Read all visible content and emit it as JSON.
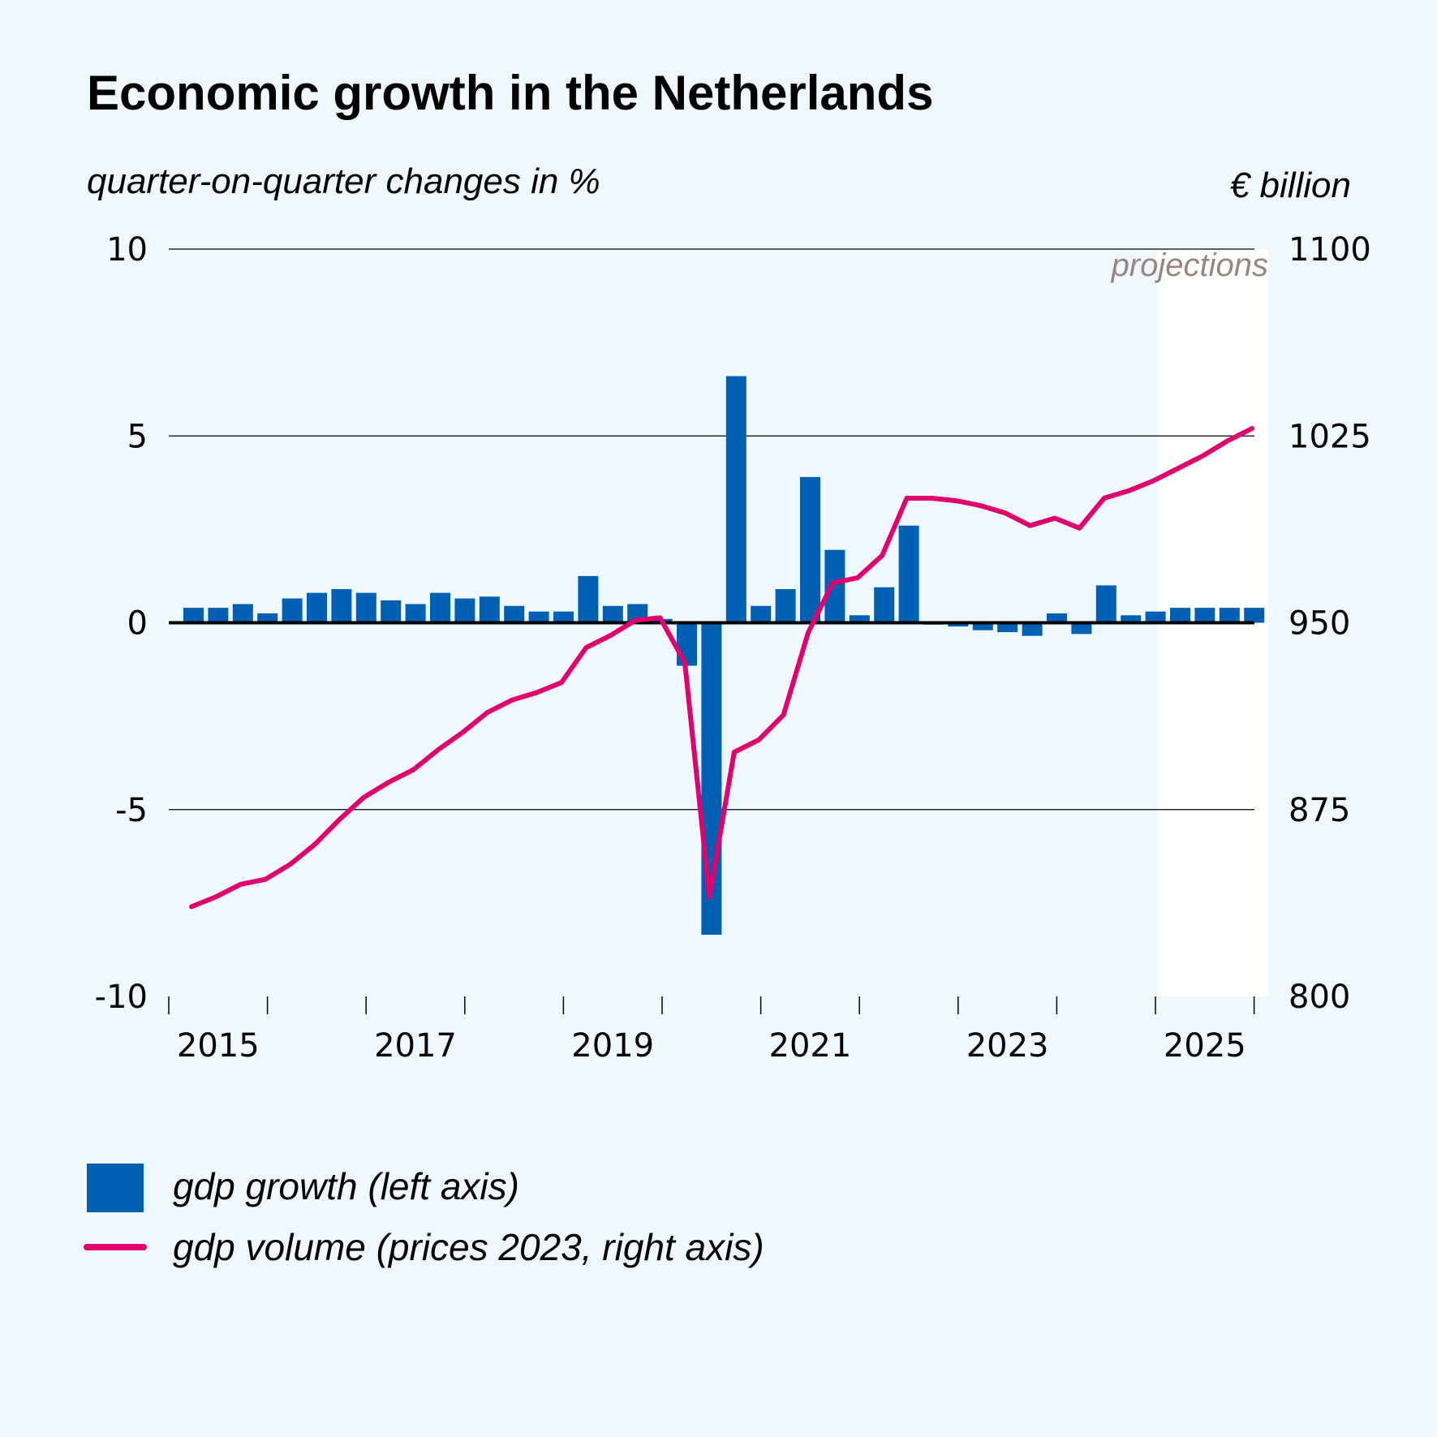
{
  "chart_data": {
    "type": "bar+line",
    "title": "Economic growth in the Netherlands",
    "left_axis_label": "quarter-on-quarter changes in %",
    "right_axis_label": "€ billion",
    "projection_label": "projections",
    "left_ylim": [
      -10,
      10
    ],
    "left_ticks": [
      "10",
      "5",
      "0",
      "-5",
      "-10"
    ],
    "right_ylim": [
      800,
      1100
    ],
    "right_ticks": [
      "1100",
      "1025",
      "950",
      "875",
      "800"
    ],
    "x_tick_labels": [
      "2015",
      "2017",
      "2019",
      "2021",
      "2023",
      "2025"
    ],
    "quarters_start": "2015Q1",
    "projection_start_index": 40,
    "grid": true,
    "legend_position": "bottom-left",
    "colors": {
      "bars": "#0060b4",
      "line": "#e0006e",
      "projection_bg": "#ffffff",
      "background": "#eef8fe"
    },
    "series": [
      {
        "name": "gdp growth (left axis)",
        "kind": "bar",
        "values": [
          0.4,
          0.4,
          0.5,
          0.25,
          0.65,
          0.8,
          0.9,
          0.8,
          0.6,
          0.5,
          0.8,
          0.65,
          0.7,
          0.45,
          0.3,
          0.3,
          1.25,
          0.45,
          0.5,
          0.1,
          -1.15,
          -8.35,
          6.6,
          0.45,
          0.9,
          3.9,
          1.95,
          0.2,
          0.95,
          2.6,
          -0.05,
          -0.1,
          -0.2,
          -0.25,
          -0.35,
          0.25,
          -0.3,
          1.0,
          0.2,
          0.3,
          0.4,
          0.4,
          0.4,
          0.4
        ]
      },
      {
        "name": "gdp volume (prices 2023, right axis)",
        "kind": "line",
        "values": [
          836,
          840,
          845,
          847,
          853,
          861,
          871,
          880,
          886,
          891,
          899,
          906,
          914,
          919,
          922,
          926,
          940,
          945,
          951,
          952,
          934,
          840,
          898,
          903,
          913,
          946,
          966,
          968,
          977,
          1000,
          1000,
          999,
          997,
          994,
          989,
          992,
          988,
          1000,
          1003,
          1007,
          1012,
          1017,
          1023,
          1028
        ]
      }
    ]
  },
  "legend": {
    "bars_label": "gdp growth (left axis)",
    "line_label": "gdp volume (prices 2023, right axis)"
  }
}
